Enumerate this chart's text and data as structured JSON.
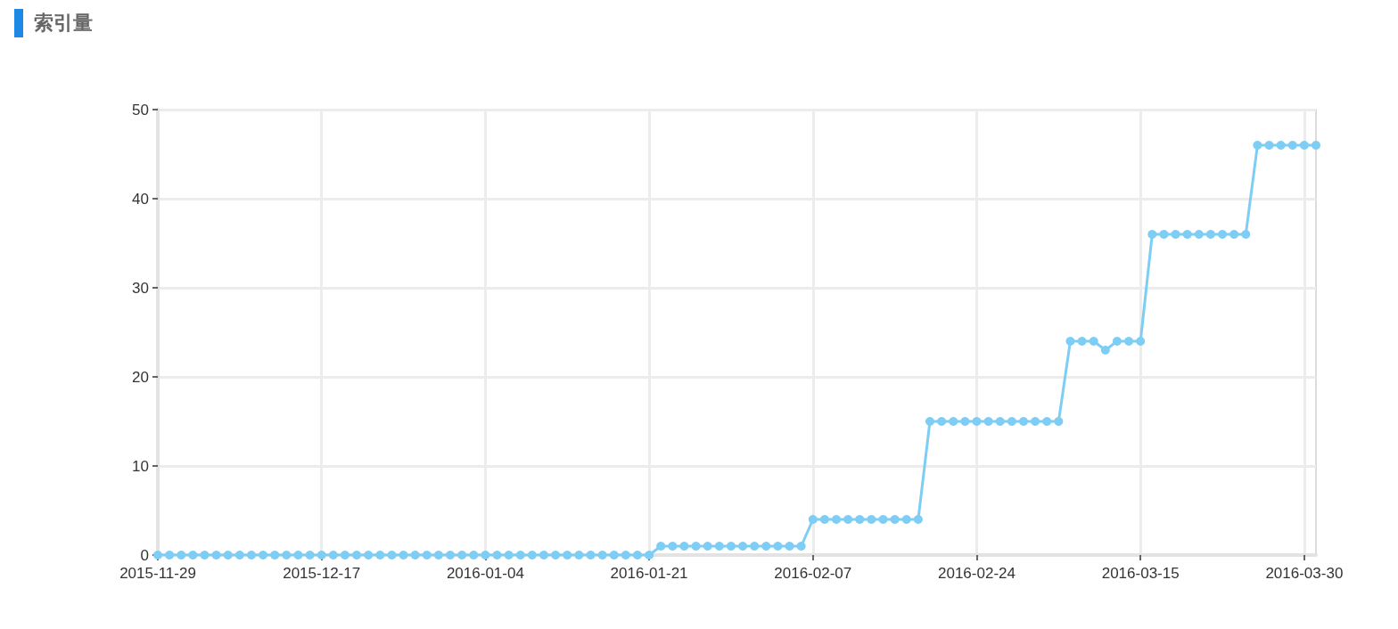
{
  "chart_data": {
    "type": "line",
    "title": "索引量",
    "categories": [
      "2015-11-29",
      null,
      null,
      null,
      null,
      null,
      null,
      null,
      null,
      null,
      null,
      null,
      null,
      null,
      "2015-12-17",
      null,
      null,
      null,
      null,
      null,
      null,
      null,
      null,
      null,
      null,
      null,
      null,
      null,
      "2016-01-04",
      null,
      null,
      null,
      null,
      null,
      null,
      null,
      null,
      null,
      null,
      null,
      null,
      null,
      "2016-01-21",
      null,
      null,
      null,
      null,
      null,
      null,
      null,
      null,
      null,
      null,
      null,
      null,
      null,
      "2016-02-07",
      null,
      null,
      null,
      null,
      null,
      null,
      null,
      null,
      null,
      null,
      null,
      null,
      null,
      "2016-02-24",
      null,
      null,
      null,
      null,
      null,
      null,
      null,
      null,
      null,
      null,
      null,
      null,
      null,
      "2016-03-15",
      null,
      null,
      null,
      null,
      null,
      null,
      null,
      null,
      null,
      null,
      null,
      null,
      null,
      "2016-03-30",
      null
    ],
    "values": [
      0,
      0,
      0,
      0,
      0,
      0,
      0,
      0,
      0,
      0,
      0,
      0,
      0,
      0,
      0,
      0,
      0,
      0,
      0,
      0,
      0,
      0,
      0,
      0,
      0,
      0,
      0,
      0,
      0,
      0,
      0,
      0,
      0,
      0,
      0,
      0,
      0,
      0,
      0,
      0,
      0,
      0,
      0,
      1,
      1,
      1,
      1,
      1,
      1,
      1,
      1,
      1,
      1,
      1,
      1,
      1,
      4,
      4,
      4,
      4,
      4,
      4,
      4,
      4,
      4,
      4,
      15,
      15,
      15,
      15,
      15,
      15,
      15,
      15,
      15,
      15,
      15,
      15,
      24,
      24,
      24,
      23,
      24,
      24,
      24,
      36,
      36,
      36,
      36,
      36,
      36,
      36,
      36,
      36,
      46,
      46,
      46,
      46,
      46,
      46
    ],
    "color": "#7ecdf4",
    "ylim": [
      0,
      50
    ],
    "yticks": [
      0,
      10,
      20,
      30,
      40,
      50
    ],
    "grid": true,
    "marker": "circle",
    "line_style": "solid"
  }
}
